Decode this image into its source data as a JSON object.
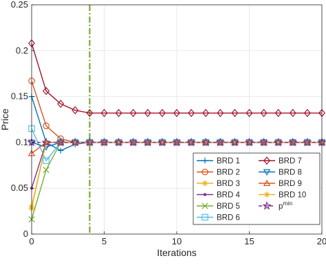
{
  "chart_data": {
    "type": "line",
    "xlabel": "Iterations",
    "ylabel": "Price",
    "xlim": [
      0,
      20
    ],
    "ylim": [
      0,
      0.25
    ],
    "xticks": [
      0,
      5,
      10,
      15,
      20
    ],
    "yticks": [
      0,
      0.05,
      0.1,
      0.15,
      0.2,
      0.25
    ],
    "xtick_labels": [
      "0",
      "5",
      "10",
      "15",
      "20"
    ],
    "ytick_labels": [
      "0",
      "0.05",
      "0.1",
      "0.15",
      "0.2",
      "0.25"
    ],
    "grid": true,
    "legend_position": "bottom-right",
    "vline": {
      "x": 4,
      "color": "#77AC30",
      "style": "dash-dot"
    },
    "x": [
      0,
      1,
      2,
      3,
      4,
      5,
      6,
      7,
      8,
      9,
      10,
      11,
      12,
      13,
      14,
      15,
      16,
      17,
      18,
      19,
      20
    ],
    "series": [
      {
        "name": "BRD 1",
        "color": "#0072BD",
        "marker": "plus",
        "values": [
          0.15,
          0.1,
          0.091,
          0.098,
          0.1,
          0.1,
          0.1,
          0.1,
          0.1,
          0.1,
          0.1,
          0.1,
          0.1,
          0.1,
          0.1,
          0.1,
          0.1,
          0.1,
          0.1,
          0.1,
          0.1
        ]
      },
      {
        "name": "BRD 2",
        "color": "#D95319",
        "marker": "circle",
        "values": [
          0.167,
          0.118,
          0.104,
          0.1,
          0.1,
          0.1,
          0.1,
          0.1,
          0.1,
          0.1,
          0.1,
          0.1,
          0.1,
          0.1,
          0.1,
          0.1,
          0.1,
          0.1,
          0.1,
          0.1,
          0.1
        ]
      },
      {
        "name": "BRD 3",
        "color": "#EDB120",
        "marker": "asterisk",
        "values": [
          0.03,
          0.1,
          0.1,
          0.1,
          0.1,
          0.1,
          0.1,
          0.1,
          0.1,
          0.1,
          0.1,
          0.1,
          0.1,
          0.1,
          0.1,
          0.1,
          0.1,
          0.1,
          0.1,
          0.1,
          0.1
        ]
      },
      {
        "name": "BRD 4",
        "color": "#7E2F8E",
        "marker": "point",
        "values": [
          0.05,
          0.1,
          0.1,
          0.1,
          0.1,
          0.1,
          0.1,
          0.1,
          0.1,
          0.1,
          0.1,
          0.1,
          0.1,
          0.1,
          0.1,
          0.1,
          0.1,
          0.1,
          0.1,
          0.1,
          0.1
        ]
      },
      {
        "name": "BRD 5",
        "color": "#77AC30",
        "marker": "x",
        "values": [
          0.016,
          0.07,
          0.1,
          0.1,
          0.1,
          0.1,
          0.1,
          0.1,
          0.1,
          0.1,
          0.1,
          0.1,
          0.1,
          0.1,
          0.1,
          0.1,
          0.1,
          0.1,
          0.1,
          0.1,
          0.1
        ]
      },
      {
        "name": "BRD 6",
        "color": "#4DBEEE",
        "marker": "square",
        "values": [
          0.115,
          0.08,
          0.1,
          0.1,
          0.1,
          0.1,
          0.1,
          0.1,
          0.1,
          0.1,
          0.1,
          0.1,
          0.1,
          0.1,
          0.1,
          0.1,
          0.1,
          0.1,
          0.1,
          0.1,
          0.1
        ]
      },
      {
        "name": "BRD 7",
        "color": "#A2142F",
        "marker": "diamond",
        "values": [
          0.208,
          0.156,
          0.142,
          0.135,
          0.132,
          0.132,
          0.132,
          0.132,
          0.132,
          0.132,
          0.132,
          0.132,
          0.132,
          0.132,
          0.132,
          0.132,
          0.132,
          0.132,
          0.132,
          0.132,
          0.132
        ]
      },
      {
        "name": "BRD 8",
        "color": "#0072BD",
        "marker": "triangle-down",
        "values": [
          0.1,
          0.095,
          0.1,
          0.1,
          0.1,
          0.1,
          0.1,
          0.1,
          0.1,
          0.1,
          0.1,
          0.1,
          0.1,
          0.1,
          0.1,
          0.1,
          0.1,
          0.1,
          0.1,
          0.1,
          0.1
        ]
      },
      {
        "name": "BRD 9",
        "color": "#D95319",
        "marker": "triangle-up",
        "values": [
          0.088,
          0.1,
          0.1,
          0.1,
          0.1,
          0.1,
          0.1,
          0.1,
          0.1,
          0.1,
          0.1,
          0.1,
          0.1,
          0.1,
          0.1,
          0.1,
          0.1,
          0.1,
          0.1,
          0.1,
          0.1
        ]
      },
      {
        "name": "BRD 10",
        "color": "#EDB120",
        "marker": "asterisk",
        "values": [
          0.028,
          0.1,
          0.1,
          0.1,
          0.1,
          0.1,
          0.1,
          0.1,
          0.1,
          0.1,
          0.1,
          0.1,
          0.1,
          0.1,
          0.1,
          0.1,
          0.1,
          0.1,
          0.1,
          0.1,
          0.1
        ]
      },
      {
        "name": "p",
        "name_sup": "min",
        "color": "#7E2F8E",
        "marker": "pentagram",
        "dashed": true,
        "values": [
          0.1,
          0.1,
          0.1,
          0.1,
          0.1,
          0.1,
          0.1,
          0.1,
          0.1,
          0.1,
          0.1,
          0.1,
          0.1,
          0.1,
          0.1,
          0.1,
          0.1,
          0.1,
          0.1,
          0.1,
          0.1
        ]
      }
    ],
    "legend_order": [
      0,
      6,
      1,
      7,
      2,
      8,
      3,
      9,
      4,
      10,
      5
    ]
  }
}
